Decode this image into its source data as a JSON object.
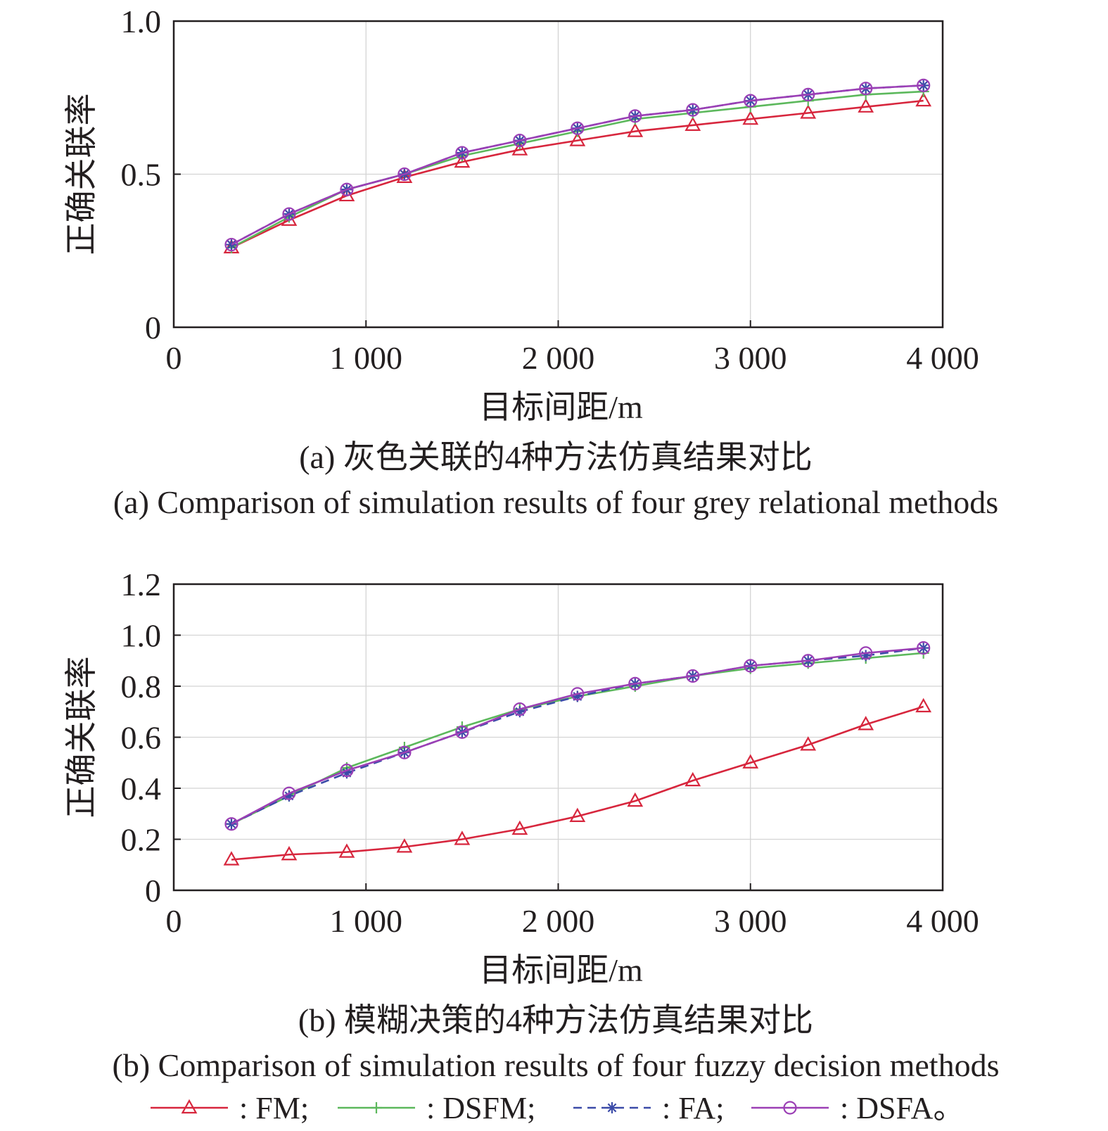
{
  "chart_data": [
    {
      "type": "line",
      "caption_zh": "(a) 灰色关联的4种方法仿真结果对比",
      "caption_en": "(a) Comparison of simulation results of four grey relational methods",
      "xlabel": "目标间距/m",
      "ylabel": "正确关联率",
      "xlim": [
        0,
        4000
      ],
      "ylim": [
        0,
        1.0
      ],
      "xticks": [
        0,
        1000,
        2000,
        3000,
        4000
      ],
      "xtick_labels": [
        "0",
        "1 000",
        "2 000",
        "3 000",
        "4 000"
      ],
      "yticks": [
        0,
        0.5,
        1.0
      ],
      "ytick_labels": [
        "0",
        "0.5",
        "1.0"
      ],
      "grid": true,
      "x": [
        300,
        600,
        900,
        1200,
        1500,
        1800,
        2100,
        2400,
        2700,
        3000,
        3300,
        3600,
        3900
      ],
      "series": [
        {
          "name": "FM",
          "values": [
            0.26,
            0.35,
            0.43,
            0.49,
            0.54,
            0.58,
            0.61,
            0.64,
            0.66,
            0.68,
            0.7,
            0.72,
            0.74
          ]
        },
        {
          "name": "DSFM",
          "values": [
            0.26,
            0.36,
            0.45,
            0.5,
            0.56,
            0.6,
            0.64,
            0.68,
            0.7,
            0.72,
            0.74,
            0.76,
            0.77
          ]
        },
        {
          "name": "FA",
          "values": [
            0.27,
            0.37,
            0.45,
            0.5,
            0.57,
            0.61,
            0.65,
            0.69,
            0.71,
            0.74,
            0.76,
            0.78,
            0.79
          ]
        },
        {
          "name": "DSFA",
          "values": [
            0.27,
            0.37,
            0.45,
            0.5,
            0.57,
            0.61,
            0.65,
            0.69,
            0.71,
            0.74,
            0.76,
            0.78,
            0.79
          ]
        }
      ]
    },
    {
      "type": "line",
      "caption_zh": "(b) 模糊决策的4种方法仿真结果对比",
      "caption_en": "(b) Comparison of simulation results of four fuzzy decision methods",
      "xlabel": "目标间距/m",
      "ylabel": "正确关联率",
      "xlim": [
        0,
        4000
      ],
      "ylim": [
        0,
        1.2
      ],
      "xticks": [
        0,
        1000,
        2000,
        3000,
        4000
      ],
      "xtick_labels": [
        "0",
        "1 000",
        "2 000",
        "3 000",
        "4 000"
      ],
      "yticks": [
        0,
        0.2,
        0.4,
        0.6,
        0.8,
        1.0,
        1.2
      ],
      "ytick_labels": [
        "0",
        "0.2",
        "0.4",
        "0.6",
        "0.8",
        "1.0",
        "1.2"
      ],
      "grid": true,
      "x": [
        300,
        600,
        900,
        1200,
        1500,
        1800,
        2100,
        2400,
        2700,
        3000,
        3300,
        3600,
        3900
      ],
      "series": [
        {
          "name": "FM",
          "values": [
            0.12,
            0.14,
            0.15,
            0.17,
            0.2,
            0.24,
            0.29,
            0.35,
            0.43,
            0.5,
            0.57,
            0.65,
            0.72
          ]
        },
        {
          "name": "DSFM",
          "values": [
            0.26,
            0.37,
            0.48,
            0.56,
            0.64,
            0.71,
            0.76,
            0.8,
            0.84,
            0.87,
            0.89,
            0.91,
            0.93
          ]
        },
        {
          "name": "FA",
          "values": [
            0.26,
            0.37,
            0.46,
            0.54,
            0.62,
            0.7,
            0.76,
            0.81,
            0.84,
            0.88,
            0.9,
            0.92,
            0.95
          ]
        },
        {
          "name": "DSFA",
          "values": [
            0.26,
            0.38,
            0.47,
            0.54,
            0.62,
            0.71,
            0.77,
            0.81,
            0.84,
            0.88,
            0.9,
            0.93,
            0.95
          ]
        }
      ]
    }
  ],
  "styles": {
    "FM": {
      "color": "#d7263d",
      "marker": "triangle",
      "dash": ""
    },
    "DSFM": {
      "color": "#5cb85c",
      "marker": "plus",
      "dash": ""
    },
    "FA": {
      "color": "#3b4ba8",
      "marker": "star",
      "dash": "12 8"
    },
    "DSFA": {
      "color": "#9b3fb5",
      "marker": "circle",
      "dash": ""
    },
    "grid_color": "#d4d4d4",
    "axis_color": "#231f20"
  },
  "legend": {
    "entries": [
      {
        "series": "FM",
        "label": ": FM;"
      },
      {
        "series": "DSFM",
        "label": ": DSFM;"
      },
      {
        "series": "FA",
        "label": ": FA;"
      },
      {
        "series": "DSFA",
        "label": ": DSFA。"
      }
    ]
  }
}
